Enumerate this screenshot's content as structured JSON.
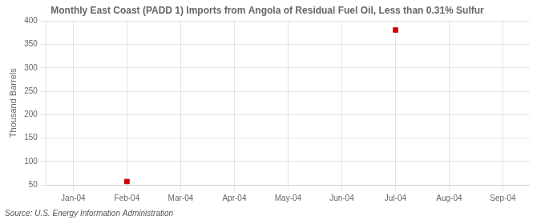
{
  "chart_data": {
    "type": "scatter",
    "title": "Monthly East Coast (PADD 1) Imports from Angola of Residual Fuel Oil, Less than 0.31% Sulfur",
    "y_label": "Thousand Barrels",
    "annotations": [
      "Source: U.S. Energy Information Administration"
    ],
    "categories": [
      "Jan-04",
      "Feb-04",
      "Mar-04",
      "Apr-04",
      "May-04",
      "Jun-04",
      "Jul-04",
      "Aug-04",
      "Sep-04"
    ],
    "values": [
      null,
      57,
      null,
      null,
      null,
      null,
      381,
      null,
      null
    ],
    "color": "#cc0000",
    "marker": "square",
    "ylim": [
      50,
      400
    ],
    "yticks": [
      50,
      100,
      150,
      200,
      250,
      300,
      350,
      400
    ],
    "grid": true
  }
}
